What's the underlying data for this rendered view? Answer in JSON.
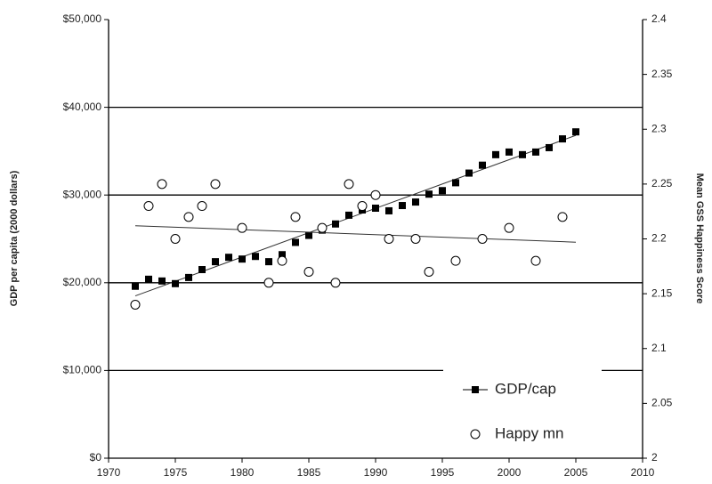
{
  "chart_data": {
    "type": "scatter",
    "y_label": "GDP per capita (2000 dollars)",
    "y2_label": "Mean GSS Happiness Score",
    "xlim": [
      1970,
      2010
    ],
    "xticks": [
      1970,
      1975,
      1980,
      1985,
      1990,
      1995,
      2000,
      2005,
      2010
    ],
    "ylim": [
      0,
      50000
    ],
    "yticks": [
      {
        "value": 0,
        "label": "$0"
      },
      {
        "value": 10000,
        "label": "$10,000"
      },
      {
        "value": 20000,
        "label": "$20,000"
      },
      {
        "value": 30000,
        "label": "$30,000"
      },
      {
        "value": 40000,
        "label": "$40,000"
      },
      {
        "value": 50000,
        "label": "$50,000"
      }
    ],
    "y2lim": [
      2,
      2.4
    ],
    "y2ticks": [
      2,
      2.05,
      2.1,
      2.15,
      2.2,
      2.25,
      2.3,
      2.35,
      2.4
    ],
    "grid": true,
    "legend": "lower right",
    "series": [
      {
        "name": "GDP/cap",
        "color": "#000000",
        "marker": "square",
        "x": [
          1972,
          1973,
          1974,
          1975,
          1976,
          1977,
          1978,
          1979,
          1980,
          1981,
          1982,
          1983,
          1984,
          1985,
          1986,
          1987,
          1988,
          1989,
          1990,
          1991,
          1992,
          1993,
          1994,
          1995,
          1996,
          1997,
          1998,
          1999,
          2000,
          2001,
          2002,
          2003,
          2004,
          2005
        ],
        "values": [
          19600,
          20400,
          20200,
          19900,
          20600,
          21500,
          22400,
          22900,
          22700,
          23000,
          22400,
          23200,
          24600,
          25400,
          26000,
          26700,
          27700,
          28300,
          28500,
          28200,
          28800,
          29200,
          30100,
          30500,
          31400,
          32500,
          33400,
          34600,
          34900,
          34600,
          34900,
          35400,
          36400,
          37200
        ],
        "trend": {
          "x": [
            1972,
            2005
          ],
          "values": [
            18500,
            36800
          ]
        }
      },
      {
        "name": "Happy mn",
        "color": "#000000",
        "marker": "circle",
        "axis": "y2",
        "x": [
          1972,
          1973,
          1974,
          1975,
          1976,
          1977,
          1978,
          1980,
          1982,
          1983,
          1984,
          1985,
          1986,
          1987,
          1988,
          1989,
          1990,
          1991,
          1993,
          1994,
          1996,
          1998,
          2000,
          2002,
          2004
        ],
        "values": [
          2.14,
          2.23,
          2.25,
          2.2,
          2.22,
          2.23,
          2.25,
          2.21,
          2.16,
          2.18,
          2.22,
          2.17,
          2.21,
          2.16,
          2.25,
          2.23,
          2.24,
          2.2,
          2.2,
          2.17,
          2.18,
          2.2,
          2.21,
          2.18,
          2.22
        ],
        "trend": {
          "x": [
            1972,
            2005
          ],
          "values": [
            2.212,
            2.197
          ]
        }
      }
    ]
  }
}
